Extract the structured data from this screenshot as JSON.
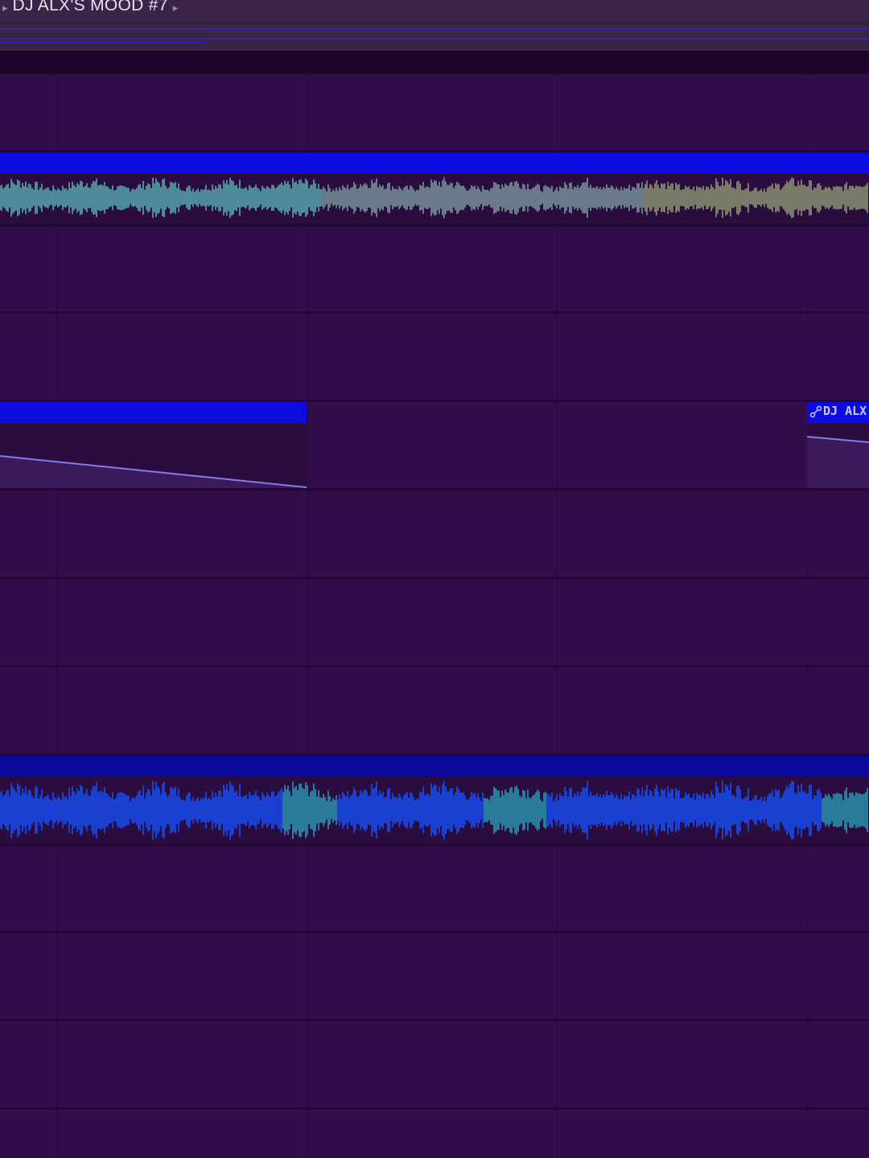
{
  "playlist": {
    "pattern_title": "DJ ALX'S MOOD #7",
    "prev_icon": "triangle-right-icon",
    "next_icon": "triangle-right-icon"
  },
  "colors": {
    "background": "#310d4a",
    "clip_header": "#0c0ce0",
    "automation_line": "#8a78f0",
    "waveform_1": "#5a8a9a",
    "waveform_2": "#1a3ad0"
  },
  "clips": {
    "audio_1": {
      "name": ""
    },
    "automation_1": {
      "name": ""
    },
    "automation_2": {
      "name": "DJ ALX'",
      "icon": "automation-link-icon"
    },
    "audio_2": {
      "name": ""
    }
  }
}
